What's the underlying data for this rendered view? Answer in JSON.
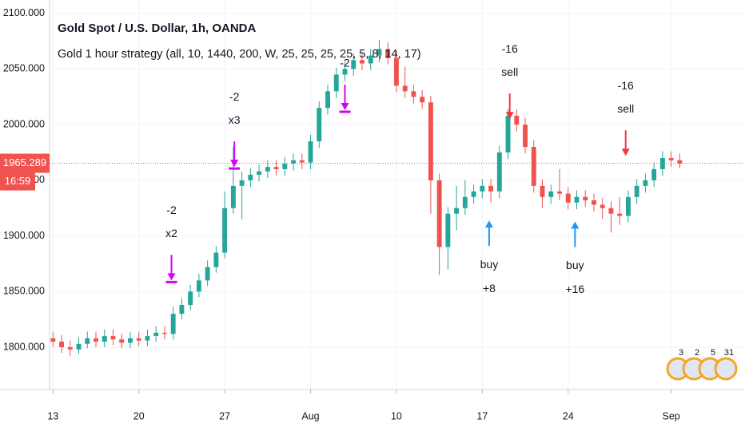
{
  "chart_data": {
    "type": "candlestick",
    "title": "Gold Spot / U.S. Dollar, 1h, OANDA",
    "subtitle": "Gold 1 hour strategy (all, 10, 1440, 200, W, 25, 25, 25, 25, 5, 8, 14, 17)",
    "up_color": "#26a69a",
    "down_color": "#ef5350",
    "grid": true,
    "x": [
      0,
      0.5,
      1,
      1.5,
      2,
      2.5,
      3,
      3.5,
      4,
      4.5,
      5,
      5.5,
      6,
      6.5,
      7,
      7.5,
      8,
      8.5,
      9,
      9.5,
      10,
      10.5,
      11,
      11.5,
      12,
      12.5,
      13,
      13.5,
      14,
      14.5,
      15,
      15.5,
      16,
      16.5,
      17,
      17.5,
      18,
      18.5,
      19,
      19.5,
      20,
      20.5,
      21,
      21.5,
      22,
      22.5,
      23,
      23.5,
      24,
      24.5,
      25,
      25.5,
      26,
      26.5,
      27,
      27.5,
      28,
      28.5,
      29,
      29.5,
      30,
      30.5,
      31,
      31.5,
      32,
      32.5,
      33,
      33.5,
      34,
      34.5,
      35,
      35.5,
      36,
      36.5
    ],
    "open": [
      1808,
      1805,
      1800,
      1798,
      1803,
      1808,
      1805,
      1810,
      1807,
      1804,
      1808,
      1806,
      1810,
      1813,
      1812,
      1830,
      1838,
      1850,
      1860,
      1872,
      1885,
      1925,
      1945,
      1950,
      1955,
      1958,
      1962,
      1960,
      1965,
      1968,
      1966,
      1985,
      2015,
      2030,
      2045,
      2050,
      2058,
      2055,
      2062,
      2068,
      2060,
      2035,
      2030,
      2025,
      2020,
      1950,
      1890,
      1920,
      1925,
      1935,
      1940,
      1945,
      1940,
      1975,
      2008,
      2000,
      1980,
      1945,
      1935,
      1940,
      1938,
      1930,
      1935,
      1932,
      1928,
      1925,
      1920,
      1918,
      1935,
      1945,
      1950,
      1960,
      1970,
      1968
    ],
    "high": [
      1814,
      1811,
      1806,
      1809,
      1814,
      1814,
      1816,
      1816,
      1812,
      1814,
      1814,
      1816,
      1819,
      1819,
      1836,
      1844,
      1856,
      1866,
      1878,
      1891,
      1940,
      1980,
      1958,
      1961,
      1964,
      1968,
      1968,
      1971,
      1974,
      1974,
      1991,
      2021,
      2036,
      2051,
      2056,
      2064,
      2064,
      2068,
      2076,
      2074,
      2066,
      2052,
      2036,
      2031,
      2026,
      1956,
      1926,
      1945,
      1950,
      1946,
      1951,
      1951,
      1981,
      2014,
      2014,
      2006,
      1986,
      1951,
      1946,
      1960,
      1944,
      1941,
      1941,
      1938,
      1934,
      1931,
      1935,
      1941,
      1951,
      1956,
      1966,
      1976,
      1976,
      1974
    ],
    "low": [
      1800,
      1795,
      1792,
      1794,
      1799,
      1800,
      1800,
      1802,
      1799,
      1799,
      1801,
      1801,
      1805,
      1807,
      1807,
      1825,
      1833,
      1845,
      1855,
      1867,
      1880,
      1920,
      1915,
      1944,
      1949,
      1952,
      1954,
      1954,
      1959,
      1960,
      1960,
      1979,
      2009,
      2024,
      2039,
      2044,
      2049,
      2049,
      2056,
      2054,
      2029,
      2024,
      2019,
      2014,
      1920,
      1865,
      1870,
      1905,
      1919,
      1929,
      1934,
      1930,
      1934,
      1969,
      1994,
      1974,
      1939,
      1925,
      1929,
      1932,
      1924,
      1924,
      1926,
      1922,
      1915,
      1903,
      1910,
      1912,
      1929,
      1939,
      1944,
      1954,
      1962,
      1961
    ],
    "close": [
      1805,
      1800,
      1798,
      1803,
      1808,
      1805,
      1810,
      1807,
      1804,
      1808,
      1806,
      1810,
      1813,
      1812,
      1830,
      1838,
      1850,
      1860,
      1872,
      1885,
      1925,
      1945,
      1950,
      1955,
      1958,
      1962,
      1960,
      1965,
      1968,
      1966,
      1985,
      2015,
      2030,
      2045,
      2050,
      2058,
      2055,
      2062,
      2068,
      2060,
      2035,
      2030,
      2025,
      2020,
      1950,
      1890,
      1920,
      1925,
      1935,
      1940,
      1945,
      1940,
      1975,
      2008,
      2000,
      1980,
      1945,
      1935,
      1940,
      1938,
      1930,
      1935,
      1932,
      1928,
      1925,
      1920,
      1918,
      1935,
      1945,
      1950,
      1960,
      1970,
      1968,
      1965
    ],
    "xlim": [
      -0.2,
      40.3
    ],
    "ylim": [
      1762,
      2112
    ],
    "xticks": [
      {
        "value": 0,
        "label": "13"
      },
      {
        "value": 5,
        "label": "20"
      },
      {
        "value": 10,
        "label": "27"
      },
      {
        "value": 15,
        "label": "Aug"
      },
      {
        "value": 20,
        "label": "10"
      },
      {
        "value": 25,
        "label": "17"
      },
      {
        "value": 30,
        "label": "24"
      },
      {
        "value": 36,
        "label": "Sep"
      }
    ],
    "yticks": [
      {
        "value": 1800,
        "label": "1800.000"
      },
      {
        "value": 1850,
        "label": "1850.000"
      },
      {
        "value": 1900,
        "label": "1900.000"
      },
      {
        "value": 1950,
        "label": "1950.000"
      },
      {
        "value": 2000,
        "label": "2000.000"
      },
      {
        "value": 2050,
        "label": "2050.000"
      },
      {
        "value": 2100,
        "label": "2100.000"
      }
    ],
    "last_price": {
      "value": 1965.289,
      "label": "1965.289"
    },
    "countdown": "16:59",
    "signals": [
      {
        "x": 6.9,
        "price": 1860,
        "direction": "down",
        "color": "#d500f9",
        "lines": [
          "-2",
          "x2"
        ]
      },
      {
        "x": 10.56,
        "price": 1962,
        "direction": "down",
        "color": "#d500f9",
        "lines": [
          "-2",
          "x3"
        ]
      },
      {
        "x": 17.0,
        "price": 2013,
        "direction": "down",
        "color": "#d500f9",
        "lines": [
          "-2"
        ]
      },
      {
        "x": 25.4,
        "price": 1914,
        "direction": "up",
        "color": "#2196f3",
        "lines": [
          "buy",
          "+8"
        ]
      },
      {
        "x": 26.6,
        "price": 2005,
        "direction": "down",
        "color": "#f23645",
        "lines": [
          "-16",
          "sell"
        ]
      },
      {
        "x": 30.4,
        "price": 1913,
        "direction": "up",
        "color": "#2196f3",
        "lines": [
          "buy",
          "+16"
        ]
      },
      {
        "x": 33.35,
        "price": 1972,
        "direction": "down",
        "color": "#f23645",
        "lines": [
          "-16",
          "sell"
        ]
      }
    ],
    "event_badges": [
      "3",
      "2",
      "5",
      "31"
    ]
  }
}
